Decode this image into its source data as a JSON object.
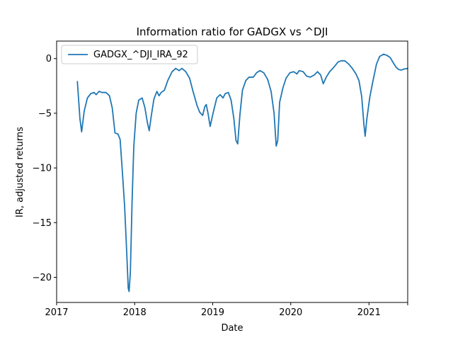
{
  "chart_data": {
    "type": "line",
    "title": "Information ratio for GADGX vs ^DJI",
    "xlabel": "Date",
    "ylabel": "IR, adjusted returns",
    "xlim": [
      "2017-01-01",
      "2021-07-01"
    ],
    "ylim": [
      -22.3,
      1.6
    ],
    "x_ticks": [
      "2017",
      "2018",
      "2019",
      "2020",
      "2021"
    ],
    "y_ticks": [
      0,
      -5,
      -10,
      -15,
      -20
    ],
    "y_tick_labels": [
      "0",
      "−5",
      "−10",
      "−15",
      "−20"
    ],
    "grid": false,
    "legend_position": "upper left",
    "series": [
      {
        "name": "GADGX_^DJI_IRA_92",
        "color": "#1f77b4",
        "points": [
          [
            "2017-04-08",
            -2.1
          ],
          [
            "2017-04-20",
            -5.5
          ],
          [
            "2017-04-28",
            -6.7
          ],
          [
            "2017-05-10",
            -4.8
          ],
          [
            "2017-05-25",
            -3.6
          ],
          [
            "2017-06-10",
            -3.2
          ],
          [
            "2017-06-25",
            -3.1
          ],
          [
            "2017-07-05",
            -3.3
          ],
          [
            "2017-07-18",
            -3.0
          ],
          [
            "2017-08-01",
            -3.1
          ],
          [
            "2017-08-20",
            -3.1
          ],
          [
            "2017-09-05",
            -3.4
          ],
          [
            "2017-09-18",
            -4.5
          ],
          [
            "2017-10-01",
            -6.8
          ],
          [
            "2017-10-15",
            -6.9
          ],
          [
            "2017-10-25",
            -7.4
          ],
          [
            "2017-11-05",
            -10.5
          ],
          [
            "2017-11-15",
            -13.5
          ],
          [
            "2017-11-25",
            -17.8
          ],
          [
            "2017-12-02",
            -21.0
          ],
          [
            "2017-12-06",
            -21.3
          ],
          [
            "2017-12-12",
            -19.5
          ],
          [
            "2017-12-20",
            -13.0
          ],
          [
            "2017-12-28",
            -8.0
          ],
          [
            "2018-01-08",
            -5.0
          ],
          [
            "2018-01-20",
            -3.8
          ],
          [
            "2018-02-05",
            -3.6
          ],
          [
            "2018-02-18",
            -4.5
          ],
          [
            "2018-03-01",
            -5.8
          ],
          [
            "2018-03-10",
            -6.6
          ],
          [
            "2018-03-20",
            -5.2
          ],
          [
            "2018-04-01",
            -3.7
          ],
          [
            "2018-04-15",
            -3.0
          ],
          [
            "2018-04-25",
            -3.4
          ],
          [
            "2018-05-05",
            -3.1
          ],
          [
            "2018-05-20",
            -2.9
          ],
          [
            "2018-06-05",
            -2.0
          ],
          [
            "2018-06-25",
            -1.2
          ],
          [
            "2018-07-12",
            -0.9
          ],
          [
            "2018-07-28",
            -1.1
          ],
          [
            "2018-08-10",
            -0.9
          ],
          [
            "2018-08-28",
            -1.2
          ],
          [
            "2018-09-15",
            -1.8
          ],
          [
            "2018-10-01",
            -3.0
          ],
          [
            "2018-10-20",
            -4.3
          ],
          [
            "2018-11-01",
            -4.9
          ],
          [
            "2018-11-15",
            -5.2
          ],
          [
            "2018-11-25",
            -4.4
          ],
          [
            "2018-12-02",
            -4.2
          ],
          [
            "2018-12-10",
            -5.0
          ],
          [
            "2018-12-20",
            -6.2
          ],
          [
            "2019-01-05",
            -4.8
          ],
          [
            "2019-01-20",
            -3.6
          ],
          [
            "2019-02-05",
            -3.3
          ],
          [
            "2019-02-18",
            -3.6
          ],
          [
            "2019-03-01",
            -3.2
          ],
          [
            "2019-03-15",
            -3.1
          ],
          [
            "2019-03-28",
            -3.8
          ],
          [
            "2019-04-10",
            -5.5
          ],
          [
            "2019-04-20",
            -7.5
          ],
          [
            "2019-04-28",
            -7.8
          ],
          [
            "2019-05-08",
            -5.2
          ],
          [
            "2019-05-20",
            -2.9
          ],
          [
            "2019-06-05",
            -2.0
          ],
          [
            "2019-06-20",
            -1.7
          ],
          [
            "2019-07-10",
            -1.7
          ],
          [
            "2019-07-25",
            -1.3
          ],
          [
            "2019-08-10",
            -1.1
          ],
          [
            "2019-08-28",
            -1.3
          ],
          [
            "2019-09-15",
            -1.9
          ],
          [
            "2019-10-01",
            -3.0
          ],
          [
            "2019-10-15",
            -5.0
          ],
          [
            "2019-10-25",
            -8.0
          ],
          [
            "2019-11-01",
            -7.5
          ],
          [
            "2019-11-10",
            -4.0
          ],
          [
            "2019-11-25",
            -2.7
          ],
          [
            "2019-12-10",
            -1.8
          ],
          [
            "2019-12-28",
            -1.3
          ],
          [
            "2020-01-15",
            -1.2
          ],
          [
            "2020-01-30",
            -1.4
          ],
          [
            "2020-02-10",
            -1.1
          ],
          [
            "2020-02-28",
            -1.2
          ],
          [
            "2020-03-15",
            -1.6
          ],
          [
            "2020-04-01",
            -1.7
          ],
          [
            "2020-04-20",
            -1.5
          ],
          [
            "2020-05-05",
            -1.2
          ],
          [
            "2020-05-20",
            -1.5
          ],
          [
            "2020-06-01",
            -2.3
          ],
          [
            "2020-06-15",
            -1.7
          ],
          [
            "2020-07-01",
            -1.2
          ],
          [
            "2020-07-20",
            -0.8
          ],
          [
            "2020-08-10",
            -0.3
          ],
          [
            "2020-08-25",
            -0.2
          ],
          [
            "2020-09-10",
            -0.2
          ],
          [
            "2020-09-28",
            -0.5
          ],
          [
            "2020-10-15",
            -0.9
          ],
          [
            "2020-11-01",
            -1.4
          ],
          [
            "2020-11-15",
            -2.0
          ],
          [
            "2020-11-28",
            -3.5
          ],
          [
            "2020-12-08",
            -6.0
          ],
          [
            "2020-12-14",
            -7.1
          ],
          [
            "2020-12-22",
            -5.5
          ],
          [
            "2021-01-05",
            -3.5
          ],
          [
            "2021-01-20",
            -2.0
          ],
          [
            "2021-02-05",
            -0.5
          ],
          [
            "2021-02-20",
            0.2
          ],
          [
            "2021-03-10",
            0.4
          ],
          [
            "2021-03-25",
            0.3
          ],
          [
            "2021-04-10",
            0.1
          ],
          [
            "2021-04-25",
            -0.4
          ],
          [
            "2021-05-08",
            -0.8
          ],
          [
            "2021-05-20",
            -1.0
          ],
          [
            "2021-06-01",
            -1.05
          ],
          [
            "2021-06-15",
            -0.95
          ],
          [
            "2021-07-01",
            -0.9
          ]
        ]
      }
    ]
  }
}
